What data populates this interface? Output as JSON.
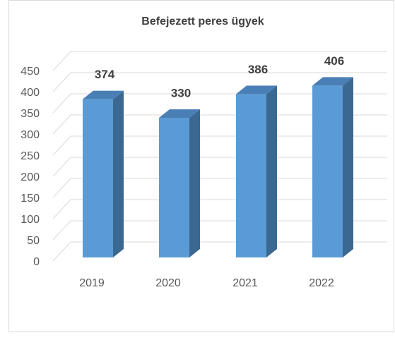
{
  "chart_data": {
    "type": "bar3d",
    "title": "Befejezett peres ügyek",
    "categories": [
      "2019",
      "2020",
      "2021",
      "2022"
    ],
    "values": [
      374,
      330,
      386,
      406
    ],
    "color": "#5b9bd5",
    "ylim": [
      0,
      450
    ],
    "yticks": [
      0,
      50,
      100,
      150,
      200,
      250,
      300,
      350,
      400,
      450
    ],
    "grid": true
  }
}
